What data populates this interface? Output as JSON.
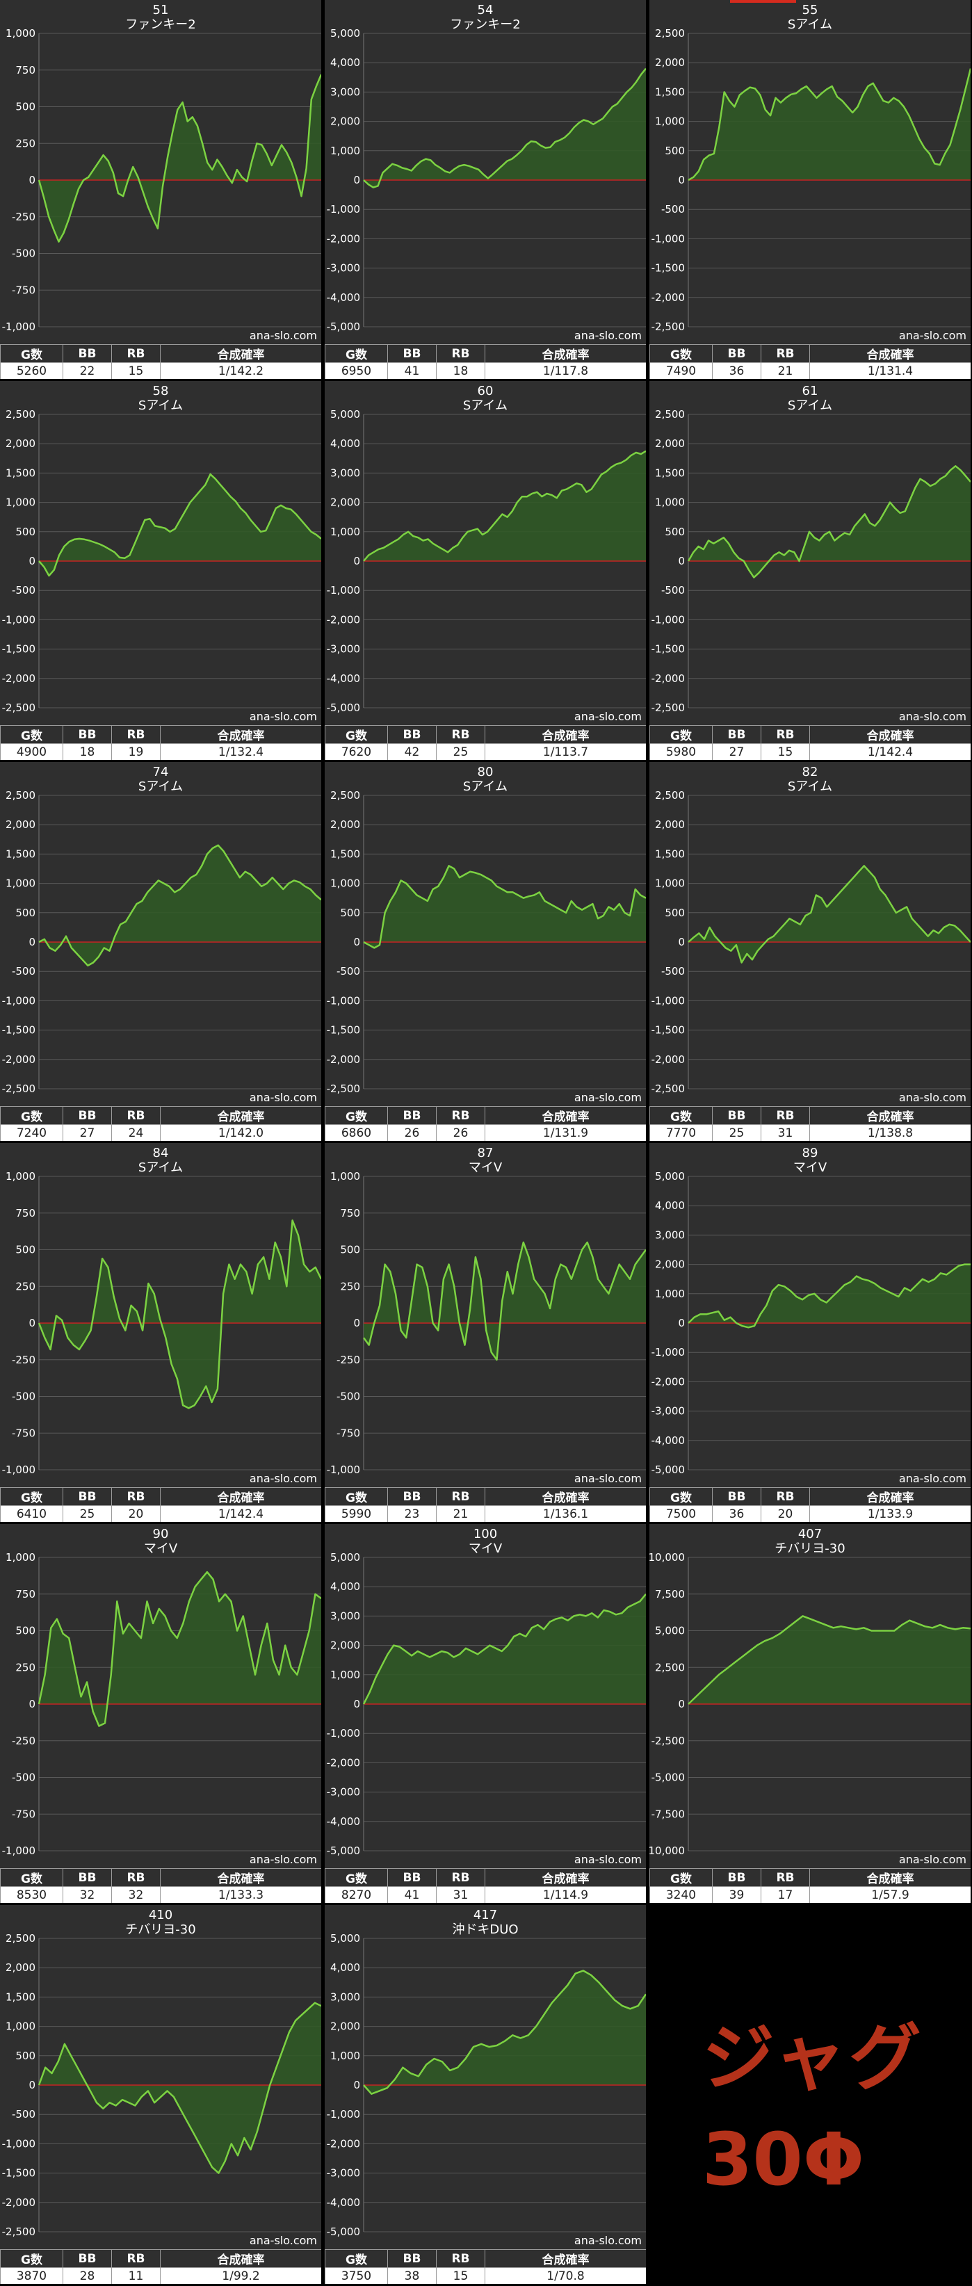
{
  "stats_headers": [
    "G数",
    "BB",
    "RB",
    "合成確率"
  ],
  "watermark": "ana-slo.com",
  "promo": {
    "line1": "ジャグ",
    "line2": "30Φ"
  },
  "colors": {
    "line": "#7cd242",
    "fill": "#2f5a25",
    "zero": "#c62323",
    "grid": "#5a5a5a",
    "bg": "#2f2f2f"
  },
  "chart_data": [
    {
      "type": "area",
      "machine_no": "51",
      "title": "ファンキー2",
      "ylim": [
        -1000,
        1000
      ],
      "yticks": [
        "1,000",
        "750",
        "500",
        "250",
        "0",
        "-250",
        "-500",
        "-750",
        "-1,000"
      ],
      "stats": [
        "5260",
        "22",
        "15",
        "1/142.2"
      ],
      "values": [
        0,
        -120,
        -250,
        -340,
        -420,
        -360,
        -270,
        -160,
        -60,
        0,
        20,
        70,
        120,
        170,
        130,
        50,
        -90,
        -110,
        0,
        90,
        20,
        -80,
        -180,
        -260,
        -330,
        -40,
        160,
        330,
        480,
        530,
        400,
        430,
        370,
        250,
        120,
        70,
        140,
        90,
        30,
        -20,
        70,
        20,
        -10,
        130,
        250,
        240,
        180,
        100,
        170,
        240,
        190,
        120,
        20,
        -110,
        80,
        550,
        640,
        720
      ]
    },
    {
      "type": "area",
      "machine_no": "54",
      "title": "ファンキー2",
      "ylim": [
        -5000,
        5000
      ],
      "yticks": [
        "5,000",
        "4,000",
        "3,000",
        "2,000",
        "1,000",
        "0",
        "-1,000",
        "-2,000",
        "-3,000",
        "-4,000",
        "-5,000"
      ],
      "stats": [
        "6950",
        "41",
        "18",
        "1/117.8"
      ],
      "values": [
        0,
        -150,
        -250,
        -200,
        250,
        400,
        550,
        500,
        420,
        380,
        320,
        500,
        640,
        720,
        680,
        520,
        420,
        300,
        250,
        380,
        480,
        520,
        480,
        420,
        360,
        200,
        60,
        200,
        350,
        500,
        650,
        720,
        850,
        1000,
        1200,
        1320,
        1300,
        1180,
        1100,
        1120,
        1300,
        1360,
        1450,
        1600,
        1800,
        1950,
        2050,
        2000,
        1900,
        2000,
        2100,
        2300,
        2500,
        2600,
        2800,
        3000,
        3150,
        3350,
        3600,
        3800
      ]
    },
    {
      "type": "area",
      "machine_no": "55",
      "title": "Sアイム",
      "ylim": [
        -2500,
        2500
      ],
      "yticks": [
        "2,500",
        "2,000",
        "1,500",
        "1,000",
        "500",
        "0",
        "-500",
        "-1,000",
        "-1,500",
        "-2,000",
        "-2,500"
      ],
      "stats": [
        "7490",
        "36",
        "21",
        "1/131.4"
      ],
      "values": [
        0,
        50,
        150,
        350,
        420,
        450,
        900,
        1500,
        1350,
        1250,
        1450,
        1520,
        1580,
        1560,
        1450,
        1200,
        1100,
        1400,
        1320,
        1400,
        1460,
        1480,
        1550,
        1600,
        1500,
        1400,
        1480,
        1550,
        1600,
        1420,
        1350,
        1250,
        1150,
        1250,
        1450,
        1600,
        1650,
        1500,
        1350,
        1320,
        1400,
        1350,
        1250,
        1100,
        900,
        700,
        550,
        450,
        280,
        260,
        450,
        600,
        900,
        1200,
        1550,
        1900
      ]
    },
    {
      "type": "area",
      "machine_no": "58",
      "title": "Sアイム",
      "ylim": [
        -2500,
        2500
      ],
      "yticks": [
        "2,500",
        "2,000",
        "1,500",
        "1,000",
        "500",
        "0",
        "-500",
        "-1,000",
        "-1,500",
        "-2,000",
        "-2,500"
      ],
      "stats": [
        "4900",
        "18",
        "19",
        "1/132.4"
      ],
      "values": [
        0,
        -100,
        -250,
        -150,
        100,
        250,
        330,
        370,
        380,
        370,
        350,
        320,
        290,
        250,
        200,
        150,
        60,
        50,
        100,
        300,
        500,
        700,
        720,
        600,
        580,
        560,
        500,
        550,
        700,
        850,
        1000,
        1100,
        1200,
        1300,
        1480,
        1400,
        1300,
        1200,
        1100,
        1020,
        900,
        820,
        700,
        600,
        500,
        520,
        700,
        900,
        950,
        900,
        880,
        800,
        700,
        600,
        500,
        450,
        380
      ]
    },
    {
      "type": "area",
      "machine_no": "60",
      "title": "Sアイム",
      "ylim": [
        -5000,
        5000
      ],
      "yticks": [
        "5,000",
        "4,000",
        "3,000",
        "2,000",
        "1,000",
        "0",
        "-1,000",
        "-2,000",
        "-3,000",
        "-4,000",
        "-5,000"
      ],
      "stats": [
        "7620",
        "42",
        "25",
        "1/113.7"
      ],
      "values": [
        0,
        200,
        300,
        400,
        450,
        550,
        650,
        750,
        900,
        1000,
        850,
        800,
        700,
        750,
        600,
        500,
        400,
        300,
        450,
        550,
        800,
        1000,
        1050,
        1100,
        900,
        1000,
        1200,
        1400,
        1600,
        1500,
        1700,
        2000,
        2200,
        2200,
        2300,
        2350,
        2200,
        2300,
        2250,
        2150,
        2400,
        2450,
        2550,
        2650,
        2600,
        2350,
        2450,
        2700,
        2950,
        3050,
        3200,
        3300,
        3350,
        3450,
        3600,
        3700,
        3650,
        3750
      ]
    },
    {
      "type": "area",
      "machine_no": "61",
      "title": "Sアイム",
      "ylim": [
        -2500,
        2500
      ],
      "yticks": [
        "2,500",
        "2,000",
        "1,500",
        "1,000",
        "500",
        "0",
        "-500",
        "-1,000",
        "-1,500",
        "-2,000",
        "-2,500"
      ],
      "stats": [
        "5980",
        "27",
        "15",
        "1/142.4"
      ],
      "values": [
        0,
        150,
        250,
        200,
        350,
        300,
        350,
        400,
        300,
        150,
        50,
        0,
        -150,
        -280,
        -200,
        -100,
        0,
        100,
        150,
        100,
        180,
        150,
        0,
        250,
        500,
        400,
        350,
        450,
        500,
        350,
        420,
        480,
        450,
        600,
        700,
        800,
        650,
        600,
        700,
        850,
        1000,
        900,
        820,
        850,
        1050,
        1250,
        1400,
        1350,
        1280,
        1320,
        1400,
        1450,
        1550,
        1620,
        1550,
        1450,
        1350
      ]
    },
    {
      "type": "area",
      "machine_no": "74",
      "title": "Sアイム",
      "ylim": [
        -2500,
        2500
      ],
      "yticks": [
        "2,500",
        "2,000",
        "1,500",
        "1,000",
        "500",
        "0",
        "-500",
        "-1,000",
        "-1,500",
        "-2,000",
        "-2,500"
      ],
      "stats": [
        "7240",
        "27",
        "24",
        "1/142.0"
      ],
      "values": [
        0,
        50,
        -100,
        -150,
        -50,
        100,
        -100,
        -200,
        -300,
        -400,
        -350,
        -250,
        -100,
        -150,
        100,
        300,
        350,
        500,
        650,
        700,
        850,
        950,
        1050,
        1000,
        950,
        850,
        900,
        1000,
        1100,
        1150,
        1300,
        1500,
        1600,
        1650,
        1550,
        1400,
        1250,
        1100,
        1200,
        1150,
        1050,
        950,
        1000,
        1100,
        1000,
        900,
        1000,
        1050,
        1020,
        950,
        900,
        800,
        720
      ]
    },
    {
      "type": "area",
      "machine_no": "80",
      "title": "Sアイム",
      "ylim": [
        -2500,
        2500
      ],
      "yticks": [
        "2,500",
        "2,000",
        "1,500",
        "1,000",
        "500",
        "0",
        "-500",
        "-1,000",
        "-1,500",
        "-2,000",
        "-2,500"
      ],
      "stats": [
        "6860",
        "26",
        "26",
        "1/131.9"
      ],
      "values": [
        0,
        -50,
        -100,
        -50,
        500,
        700,
        850,
        1050,
        1000,
        900,
        800,
        750,
        700,
        900,
        950,
        1100,
        1300,
        1250,
        1100,
        1150,
        1200,
        1180,
        1150,
        1100,
        1050,
        950,
        900,
        850,
        850,
        800,
        750,
        780,
        800,
        850,
        700,
        650,
        600,
        550,
        500,
        700,
        600,
        550,
        600,
        650,
        400,
        450,
        600,
        550,
        650,
        500,
        450,
        900,
        800,
        750
      ]
    },
    {
      "type": "area",
      "machine_no": "82",
      "title": "Sアイム",
      "ylim": [
        -2500,
        2500
      ],
      "yticks": [
        "2,500",
        "2,000",
        "1,500",
        "1,000",
        "500",
        "0",
        "-500",
        "-1,000",
        "-1,500",
        "-2,000",
        "-2,500"
      ],
      "stats": [
        "7770",
        "25",
        "31",
        "1/138.8"
      ],
      "values": [
        0,
        80,
        150,
        50,
        250,
        100,
        0,
        -100,
        -150,
        -50,
        -350,
        -200,
        -300,
        -150,
        -50,
        50,
        100,
        200,
        300,
        400,
        350,
        300,
        450,
        500,
        800,
        750,
        600,
        700,
        800,
        900,
        1000,
        1100,
        1200,
        1300,
        1200,
        1100,
        900,
        800,
        650,
        500,
        550,
        600,
        400,
        300,
        200,
        100,
        200,
        150,
        250,
        300,
        280,
        200,
        100,
        0
      ]
    },
    {
      "type": "area",
      "machine_no": "84",
      "title": "Sアイム",
      "ylim": [
        -1000,
        1000
      ],
      "yticks": [
        "1,000",
        "750",
        "500",
        "250",
        "0",
        "-250",
        "-500",
        "-750",
        "-1,000"
      ],
      "stats": [
        "6410",
        "25",
        "20",
        "1/142.4"
      ],
      "values": [
        0,
        -100,
        -180,
        50,
        20,
        -100,
        -150,
        -180,
        -120,
        -50,
        180,
        440,
        380,
        180,
        30,
        -50,
        120,
        80,
        -50,
        270,
        200,
        30,
        -100,
        -280,
        -380,
        -560,
        -580,
        -560,
        -500,
        -430,
        -540,
        -450,
        200,
        400,
        300,
        400,
        350,
        200,
        400,
        450,
        300,
        550,
        450,
        250,
        700,
        600,
        400,
        350,
        380,
        300
      ]
    },
    {
      "type": "area",
      "machine_no": "87",
      "title": "マイV",
      "ylim": [
        -1000,
        1000
      ],
      "yticks": [
        "1,000",
        "750",
        "500",
        "250",
        "0",
        "-250",
        "-500",
        "-750",
        "-1,000"
      ],
      "stats": [
        "5990",
        "23",
        "21",
        "1/136.1"
      ],
      "values": [
        -100,
        -150,
        0,
        120,
        400,
        350,
        200,
        -50,
        -100,
        150,
        400,
        380,
        250,
        0,
        -50,
        300,
        400,
        250,
        0,
        -150,
        100,
        450,
        300,
        -50,
        -200,
        -250,
        150,
        350,
        200,
        400,
        550,
        450,
        300,
        250,
        200,
        100,
        300,
        400,
        380,
        300,
        400,
        500,
        550,
        450,
        300,
        250,
        200,
        300,
        400,
        350,
        300,
        400,
        450,
        500
      ]
    },
    {
      "type": "area",
      "machine_no": "89",
      "title": "マイV",
      "ylim": [
        -5000,
        5000
      ],
      "yticks": [
        "5,000",
        "4,000",
        "3,000",
        "2,000",
        "1,000",
        "0",
        "-1,000",
        "-2,000",
        "-3,000",
        "-4,000",
        "-5,000"
      ],
      "stats": [
        "7500",
        "36",
        "20",
        "1/133.9"
      ],
      "values": [
        0,
        200,
        300,
        300,
        350,
        400,
        100,
        200,
        0,
        -100,
        -150,
        -100,
        300,
        600,
        1100,
        1300,
        1250,
        1100,
        900,
        800,
        950,
        1000,
        800,
        700,
        900,
        1100,
        1300,
        1400,
        1600,
        1500,
        1450,
        1350,
        1200,
        1100,
        1000,
        900,
        1200,
        1100,
        1300,
        1500,
        1400,
        1500,
        1700,
        1650,
        1800,
        1950,
        2000,
        2000
      ]
    },
    {
      "type": "area",
      "machine_no": "90",
      "title": "マイV",
      "ylim": [
        -1000,
        1000
      ],
      "yticks": [
        "1,000",
        "750",
        "500",
        "250",
        "0",
        "-250",
        "-500",
        "-750",
        "-1,000"
      ],
      "stats": [
        "8530",
        "32",
        "32",
        "1/133.3"
      ],
      "values": [
        0,
        200,
        520,
        580,
        480,
        450,
        250,
        50,
        150,
        -50,
        -150,
        -130,
        200,
        700,
        480,
        550,
        500,
        450,
        700,
        550,
        650,
        600,
        500,
        450,
        550,
        700,
        800,
        850,
        900,
        850,
        700,
        750,
        700,
        500,
        600,
        400,
        200,
        400,
        550,
        300,
        200,
        400,
        250,
        200,
        350,
        500,
        750,
        720
      ]
    },
    {
      "type": "area",
      "machine_no": "100",
      "title": "マイV",
      "ylim": [
        -5000,
        5000
      ],
      "yticks": [
        "5,000",
        "4,000",
        "3,000",
        "2,000",
        "1,000",
        "0",
        "-1,000",
        "-2,000",
        "-3,000",
        "-4,000",
        "-5,000"
      ],
      "stats": [
        "8270",
        "41",
        "31",
        "1/114.9"
      ],
      "values": [
        0,
        400,
        900,
        1300,
        1700,
        2000,
        1950,
        1800,
        1650,
        1800,
        1700,
        1600,
        1700,
        1800,
        1750,
        1600,
        1700,
        1900,
        1800,
        1700,
        1850,
        2000,
        1900,
        1800,
        2000,
        2300,
        2400,
        2300,
        2600,
        2700,
        2550,
        2800,
        2900,
        2950,
        2850,
        3000,
        3050,
        3000,
        3100,
        2950,
        3200,
        3150,
        3050,
        3100,
        3300,
        3400,
        3500,
        3750
      ]
    },
    {
      "type": "area",
      "machine_no": "407",
      "title": "チバリヨ-30",
      "ylim": [
        -10000,
        10000
      ],
      "yticks": [
        "10,000",
        "7,500",
        "5,000",
        "2,500",
        "0",
        "-2,500",
        "-5,000",
        "-7,500",
        "-10,000"
      ],
      "stats": [
        "3240",
        "39",
        "17",
        "1/57.9"
      ],
      "values": [
        0,
        500,
        1000,
        1500,
        2000,
        2400,
        2800,
        3200,
        3600,
        4000,
        4300,
        4500,
        4800,
        5200,
        5600,
        6000,
        5800,
        5600,
        5400,
        5200,
        5300,
        5200,
        5100,
        5200,
        5000,
        5000,
        5000,
        5000,
        5400,
        5700,
        5500,
        5300,
        5200,
        5400,
        5200,
        5100,
        5200,
        5150
      ]
    },
    {
      "type": "area",
      "machine_no": "410",
      "title": "チバリヨ-30",
      "ylim": [
        -2500,
        2500
      ],
      "yticks": [
        "2,500",
        "2,000",
        "1,500",
        "1,000",
        "500",
        "0",
        "-500",
        "-1,000",
        "-1,500",
        "-2,000",
        "-2,500"
      ],
      "stats": [
        "3870",
        "28",
        "11",
        "1/99.2"
      ],
      "values": [
        0,
        300,
        200,
        400,
        700,
        500,
        300,
        100,
        -100,
        -300,
        -400,
        -300,
        -350,
        -250,
        -300,
        -350,
        -200,
        -100,
        -300,
        -200,
        -100,
        -200,
        -400,
        -600,
        -800,
        -1000,
        -1200,
        -1400,
        -1500,
        -1300,
        -1000,
        -1200,
        -900,
        -1100,
        -800,
        -400,
        0,
        300,
        600,
        900,
        1100,
        1200,
        1300,
        1400,
        1350
      ]
    },
    {
      "type": "area",
      "machine_no": "417",
      "title": "沖ドキDUO",
      "ylim": [
        -5000,
        5000
      ],
      "yticks": [
        "5,000",
        "4,000",
        "3,000",
        "2,000",
        "1,000",
        "0",
        "-1,000",
        "-2,000",
        "-3,000",
        "-4,000",
        "-5,000"
      ],
      "stats": [
        "3750",
        "38",
        "15",
        "1/70.8"
      ],
      "values": [
        0,
        -300,
        -200,
        -100,
        200,
        600,
        400,
        300,
        700,
        900,
        800,
        500,
        600,
        900,
        1300,
        1400,
        1300,
        1350,
        1500,
        1700,
        1600,
        1700,
        2000,
        2400,
        2800,
        3100,
        3400,
        3800,
        3900,
        3750,
        3500,
        3200,
        2900,
        2700,
        2600,
        2700,
        3100
      ]
    }
  ]
}
